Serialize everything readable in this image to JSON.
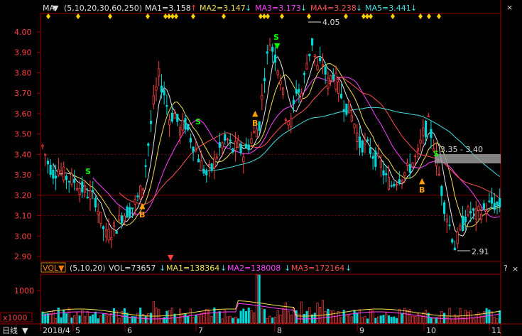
{
  "colors": {
    "up": "#ff4040",
    "down": "#00d8d8",
    "ma1": "#e8e8e8",
    "ma2": "#f0e050",
    "ma3": "#ff40ff",
    "ma4": "#ff5050",
    "ma5": "#40e0e0",
    "grid": "#7a0000",
    "axis": "#a00000",
    "label": "#ff4040",
    "signal_s": "#00ff00",
    "signal_b": "#ffa000"
  },
  "main_header": {
    "indicator": "MA",
    "params": "(5,10,20,30,60,250)",
    "ma1": "MA1=3.158",
    "ma2": "MA2=3.147",
    "ma3": "MA3=3.173",
    "ma4": "MA4=3.238",
    "ma5": "MA5=3.441",
    "close_icon": "×"
  },
  "vol_header": {
    "indicator": "VOL",
    "params": "(5,10,20)",
    "vol": "VOL=73657",
    "ma1": "MA1=138364",
    "ma2": "MA2=138008",
    "ma3": "MA3=172164",
    "help_icon": "?",
    "close_icon": "×"
  },
  "axis": {
    "price_ticks": [
      "4.00",
      "3.90",
      "3.80",
      "3.70",
      "3.60",
      "3.50",
      "3.40",
      "3.30",
      "3.20",
      "3.10",
      "3.00",
      "2.90"
    ],
    "vol_tick": "1000",
    "vol_unit": "x1000",
    "period": "日线",
    "x_labels": [
      "2018/4",
      "5",
      "6",
      "7",
      "8",
      "9",
      "10",
      "11"
    ]
  },
  "annotations": {
    "high": "4.05",
    "low": "2.91",
    "range": "3.35 - 3.40",
    "s_label": "S",
    "b_label": "B"
  },
  "chart_data": {
    "type": "candlestick",
    "title": "",
    "ylim": [
      2.88,
      4.05
    ],
    "x_labels": [
      "2018/4",
      "5",
      "6",
      "7",
      "8",
      "9",
      "10",
      "11"
    ],
    "close_path": [
      3.44,
      3.36,
      3.31,
      3.33,
      3.3,
      3.28,
      3.27,
      3.24,
      3.22,
      3.2,
      3.18,
      3.08,
      3.0,
      3.02,
      3.05,
      3.1,
      3.12,
      3.14,
      3.18,
      3.25,
      3.45,
      3.65,
      3.78,
      3.7,
      3.58,
      3.6,
      3.52,
      3.55,
      3.48,
      3.42,
      3.35,
      3.3,
      3.33,
      3.4,
      3.45,
      3.47,
      3.42,
      3.44,
      3.4,
      3.45,
      3.5,
      3.55,
      3.8,
      3.95,
      3.88,
      3.78,
      3.6,
      3.55,
      3.72,
      3.7,
      3.85,
      3.95,
      3.82,
      3.85,
      3.75,
      3.8,
      3.72,
      3.65,
      3.62,
      3.55,
      3.45,
      3.45,
      3.42,
      3.38,
      3.35,
      3.28,
      3.25,
      3.28,
      3.3,
      3.32,
      3.36,
      3.4,
      3.5,
      3.55,
      3.45,
      3.3,
      3.15,
      3.05,
      2.95,
      3.02,
      3.1,
      3.12,
      3.1,
      3.12,
      3.14,
      3.16,
      3.15
    ],
    "high": 4.05,
    "low": 2.91,
    "volume_ref_tick": 1000
  }
}
